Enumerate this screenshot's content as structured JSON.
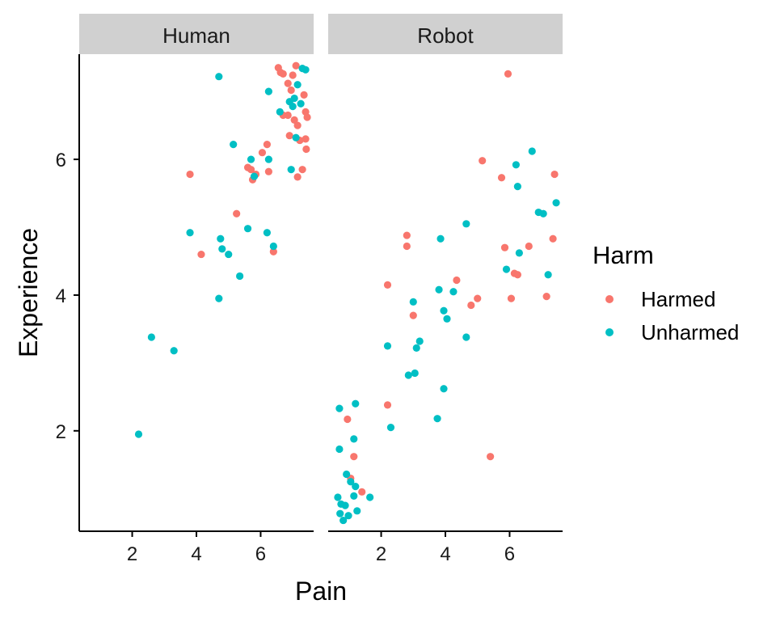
{
  "colors": {
    "Harmed": "#F8766D",
    "Unharmed": "#00BFC4",
    "strip": "#d0d0d0"
  },
  "chart_data": {
    "type": "scatter",
    "xlabel": "Pain",
    "ylabel": "Experience",
    "xlim": [
      0.35,
      7.65
    ],
    "ylim": [
      0.52,
      7.55
    ],
    "x_ticks": [
      2,
      4,
      6
    ],
    "y_ticks": [
      2,
      4,
      6
    ],
    "legend": {
      "title": "Harm",
      "position": "right",
      "entries": [
        "Harmed",
        "Unharmed"
      ]
    },
    "facets": [
      {
        "name": "Human",
        "series": [
          {
            "name": "Harmed",
            "points": [
              [
                3.8,
                5.78
              ],
              [
                4.15,
                4.6
              ],
              [
                5.25,
                5.2
              ],
              [
                5.6,
                5.88
              ],
              [
                5.7,
                5.85
              ],
              [
                5.75,
                5.7
              ],
              [
                5.85,
                5.78
              ],
              [
                6.05,
                6.1
              ],
              [
                6.2,
                6.22
              ],
              [
                6.25,
                5.82
              ],
              [
                6.4,
                4.64
              ],
              [
                6.55,
                7.35
              ],
              [
                6.62,
                7.28
              ],
              [
                6.7,
                7.26
              ],
              [
                6.7,
                6.65
              ],
              [
                6.85,
                6.65
              ],
              [
                6.85,
                7.12
              ],
              [
                6.9,
                6.35
              ],
              [
                6.95,
                7.02
              ],
              [
                7.0,
                7.24
              ],
              [
                7.05,
                6.58
              ],
              [
                7.1,
                7.38
              ],
              [
                7.15,
                5.74
              ],
              [
                7.15,
                6.5
              ],
              [
                7.22,
                6.28
              ],
              [
                7.3,
                5.85
              ],
              [
                7.35,
                6.95
              ],
              [
                7.4,
                6.3
              ],
              [
                7.4,
                6.7
              ],
              [
                7.42,
                6.15
              ],
              [
                7.45,
                6.62
              ]
            ]
          },
          {
            "name": "Unharmed",
            "points": [
              [
                2.2,
                1.95
              ],
              [
                2.6,
                3.38
              ],
              [
                3.3,
                3.18
              ],
              [
                3.8,
                4.92
              ],
              [
                4.7,
                7.22
              ],
              [
                4.7,
                3.95
              ],
              [
                4.75,
                4.83
              ],
              [
                4.8,
                4.68
              ],
              [
                5.0,
                4.6
              ],
              [
                5.15,
                6.22
              ],
              [
                5.35,
                4.28
              ],
              [
                5.6,
                4.98
              ],
              [
                5.7,
                6.0
              ],
              [
                5.8,
                5.75
              ],
              [
                6.2,
                4.92
              ],
              [
                6.25,
                7.0
              ],
              [
                6.25,
                6.0
              ],
              [
                6.4,
                4.72
              ],
              [
                6.6,
                6.7
              ],
              [
                6.9,
                6.85
              ],
              [
                6.95,
                5.85
              ],
              [
                7.0,
                6.78
              ],
              [
                7.05,
                6.9
              ],
              [
                7.1,
                6.32
              ],
              [
                7.15,
                7.1
              ],
              [
                7.25,
                6.82
              ],
              [
                7.3,
                7.34
              ],
              [
                7.4,
                7.32
              ]
            ]
          }
        ]
      },
      {
        "name": "Robot",
        "series": [
          {
            "name": "Harmed",
            "points": [
              [
                0.95,
                2.17
              ],
              [
                1.05,
                1.3
              ],
              [
                1.15,
                1.62
              ],
              [
                1.4,
                1.1
              ],
              [
                2.2,
                4.15
              ],
              [
                2.2,
                2.38
              ],
              [
                2.8,
                4.88
              ],
              [
                2.8,
                4.72
              ],
              [
                3.0,
                3.7
              ],
              [
                4.35,
                4.22
              ],
              [
                4.8,
                3.85
              ],
              [
                5.0,
                3.95
              ],
              [
                5.15,
                5.98
              ],
              [
                5.4,
                1.62
              ],
              [
                5.75,
                5.73
              ],
              [
                5.85,
                4.7
              ],
              [
                5.95,
                7.26
              ],
              [
                6.05,
                3.95
              ],
              [
                6.15,
                4.32
              ],
              [
                6.25,
                4.3
              ],
              [
                6.6,
                4.72
              ],
              [
                7.15,
                3.98
              ],
              [
                7.35,
                4.83
              ],
              [
                7.4,
                5.78
              ]
            ]
          },
          {
            "name": "Unharmed",
            "points": [
              [
                0.65,
                1.02
              ],
              [
                0.7,
                2.33
              ],
              [
                0.7,
                1.73
              ],
              [
                0.72,
                0.78
              ],
              [
                0.75,
                0.92
              ],
              [
                0.82,
                0.68
              ],
              [
                0.88,
                0.9
              ],
              [
                0.92,
                1.36
              ],
              [
                0.98,
                0.75
              ],
              [
                1.05,
                1.25
              ],
              [
                1.15,
                1.88
              ],
              [
                1.15,
                1.04
              ],
              [
                1.2,
                2.4
              ],
              [
                1.2,
                1.18
              ],
              [
                1.25,
                0.82
              ],
              [
                1.65,
                1.02
              ],
              [
                2.2,
                3.25
              ],
              [
                2.3,
                2.05
              ],
              [
                2.85,
                2.82
              ],
              [
                3.0,
                3.9
              ],
              [
                3.05,
                2.85
              ],
              [
                3.1,
                3.22
              ],
              [
                3.2,
                3.32
              ],
              [
                3.75,
                2.18
              ],
              [
                3.8,
                4.08
              ],
              [
                3.85,
                4.83
              ],
              [
                3.95,
                3.77
              ],
              [
                3.95,
                2.62
              ],
              [
                4.05,
                3.65
              ],
              [
                4.25,
                4.05
              ],
              [
                4.65,
                3.38
              ],
              [
                4.65,
                5.05
              ],
              [
                5.9,
                4.38
              ],
              [
                6.2,
                5.92
              ],
              [
                6.25,
                5.6
              ],
              [
                6.3,
                4.62
              ],
              [
                6.7,
                6.12
              ],
              [
                6.9,
                5.22
              ],
              [
                7.05,
                5.2
              ],
              [
                7.2,
                4.3
              ],
              [
                7.45,
                5.36
              ]
            ]
          }
        ]
      }
    ]
  }
}
